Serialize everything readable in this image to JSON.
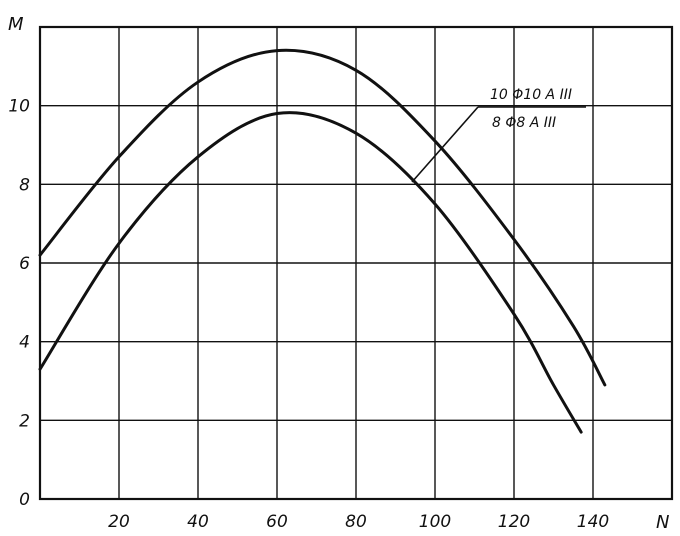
{
  "chart_data": {
    "type": "line",
    "title": "",
    "xlabel": "N",
    "ylabel": "M",
    "xlim": [
      0,
      160
    ],
    "ylim": [
      0,
      12
    ],
    "xticks": [
      20,
      40,
      60,
      80,
      100,
      120,
      140
    ],
    "yticks": [
      0,
      2,
      4,
      6,
      8,
      10
    ],
    "grid": true,
    "series": [
      {
        "name": "10 Φ10 A III",
        "x": [
          0,
          20,
          40,
          60,
          80,
          100,
          120,
          135,
          143
        ],
        "y": [
          6.2,
          8.7,
          10.6,
          11.4,
          10.9,
          9.1,
          6.6,
          4.4,
          2.9
        ]
      },
      {
        "name": "8 Φ8 A III",
        "x": [
          0,
          20,
          40,
          60,
          80,
          100,
          120,
          130,
          137
        ],
        "y": [
          3.3,
          6.5,
          8.7,
          9.8,
          9.3,
          7.5,
          4.7,
          2.9,
          1.7
        ]
      }
    ],
    "annotation": {
      "numerator": "10 Φ10 A III",
      "denominator": "8 Φ8 A III"
    }
  }
}
